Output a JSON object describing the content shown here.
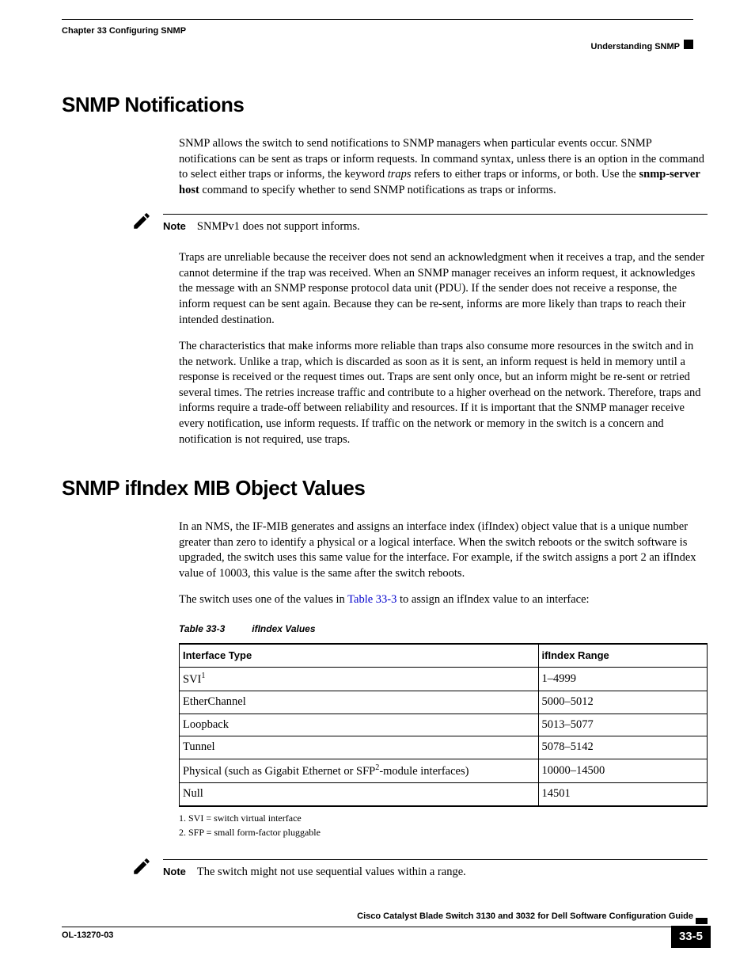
{
  "header": {
    "chapter": "Chapter 33      Configuring SNMP",
    "section": "Understanding SNMP"
  },
  "sections": {
    "s1": {
      "title": "SNMP Notifications",
      "p1a": "SNMP allows the switch to send notifications to SNMP managers when particular events occur. SNMP notifications can be sent as traps or inform requests. In command syntax, unless there is an option in the command to select either traps or informs, the keyword ",
      "p1_italic": "traps",
      "p1b": " refers to either traps or informs, or both. Use the ",
      "p1_bold": "snmp-server host",
      "p1c": " command to specify whether to send SNMP notifications as traps or informs.",
      "note1": "SNMPv1 does not support informs.",
      "p2": "Traps are unreliable because the receiver does not send an acknowledgment when it receives a trap, and the sender cannot determine if the trap was received. When an SNMP manager receives an inform request, it acknowledges the message with an SNMP response protocol data unit (PDU). If the sender does not receive a response, the inform request can be sent again. Because they can be re-sent, informs are more likely than traps to reach their intended destination.",
      "p3": "The characteristics that make informs more reliable than traps also consume more resources in the switch and in the network. Unlike a trap, which is discarded as soon as it is sent, an inform request is held in memory until a response is received or the request times out. Traps are sent only once, but an inform might be re-sent or retried several times. The retries increase traffic and contribute to a higher overhead on the network. Therefore, traps and informs require a trade-off between reliability and resources. If it is important that the SNMP manager receive every notification, use inform requests. If traffic on the network or memory in the switch is a concern and notification is not required, use traps."
    },
    "s2": {
      "title": "SNMP ifIndex MIB Object Values",
      "p1": "In an NMS, the IF-MIB generates and assigns an interface index (ifIndex) object value that is a unique number greater than zero to identify a physical or a logical interface. When the switch reboots or the switch software is upgraded, the switch uses this same value for the interface. For example, if the switch assigns a port 2 an ifIndex value of 10003, this value is the same after the switch reboots.",
      "p2a": "The switch uses one of the values in ",
      "p2_link": "Table 33-3",
      "p2b": " to assign an ifIndex value to an interface:",
      "table_num": "Table 33-3",
      "table_title": "ifIndex Values",
      "table": {
        "col1": "Interface Type",
        "col2": "ifIndex Range",
        "rows": [
          {
            "c1a": "SVI",
            "sup": "1",
            "c1b": "",
            "c2": "1–4999"
          },
          {
            "c1a": "EtherChannel",
            "sup": "",
            "c1b": "",
            "c2": "5000–5012"
          },
          {
            "c1a": "Loopback",
            "sup": "",
            "c1b": "",
            "c2": "5013–5077"
          },
          {
            "c1a": "Tunnel",
            "sup": "",
            "c1b": "",
            "c2": "5078–5142"
          },
          {
            "c1a": "Physical (such as Gigabit Ethernet or SFP",
            "sup": "2",
            "c1b": "-module interfaces)",
            "c2": "10000–14500"
          },
          {
            "c1a": "Null",
            "sup": "",
            "c1b": "",
            "c2": "14501"
          }
        ]
      },
      "fn1": "1.   SVI = switch virtual interface",
      "fn2": "2.   SFP = small form-factor pluggable",
      "note2": "The switch might not use sequential values within a range."
    }
  },
  "footer": {
    "guide": "Cisco Catalyst Blade Switch 3130 and 3032 for Dell Software Configuration Guide",
    "docid": "OL-13270-03",
    "page": "33-5"
  },
  "labels": {
    "note": "Note"
  },
  "style": {
    "link_color": "#0000cc",
    "text_color": "#000000",
    "bg_color": "#ffffff"
  }
}
